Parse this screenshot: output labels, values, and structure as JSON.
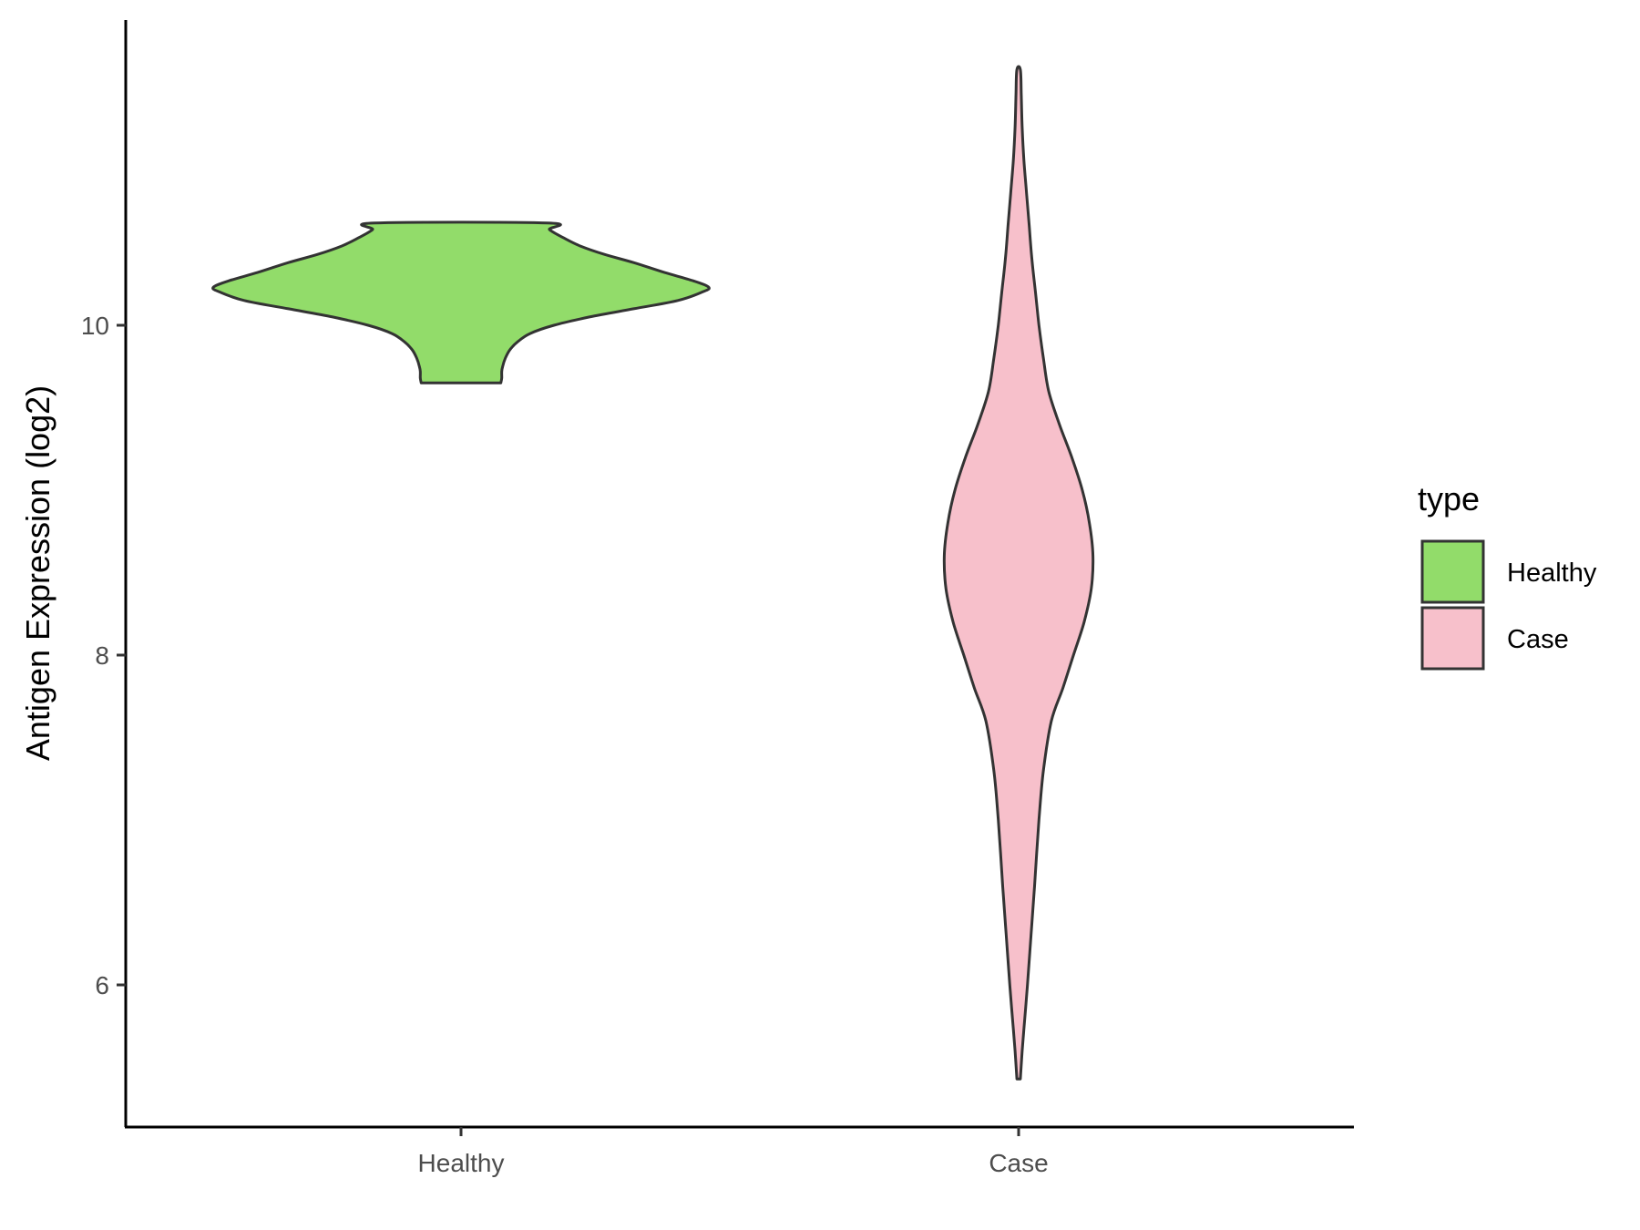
{
  "chart_data": {
    "type": "violin",
    "ylabel": "Antigen Expression (log2)",
    "xlabel": "",
    "categories": [
      "Healthy",
      "Case"
    ],
    "y_ticks": [
      6,
      8,
      10
    ],
    "ylim": [
      5.2,
      11.9
    ],
    "grid": false,
    "legend": {
      "title": "type",
      "position": "right",
      "entries": [
        {
          "label": "Healthy",
          "color": "#92dc6a"
        },
        {
          "label": "Case",
          "color": "#f7c0cb"
        }
      ]
    },
    "series": [
      {
        "category": "Healthy",
        "color": "#92dc6a",
        "min": 9.65,
        "max": 10.62,
        "density_profile": [
          [
            9.65,
            0.45
          ],
          [
            9.68,
            0.46
          ],
          [
            9.72,
            0.46
          ],
          [
            9.75,
            0.47
          ],
          [
            9.8,
            0.5
          ],
          [
            9.85,
            0.55
          ],
          [
            9.9,
            0.64
          ],
          [
            9.95,
            0.78
          ],
          [
            10.0,
            1.05
          ],
          [
            10.05,
            1.45
          ],
          [
            10.1,
            1.95
          ],
          [
            10.15,
            2.45
          ],
          [
            10.2,
            2.72
          ],
          [
            10.23,
            2.8
          ],
          [
            10.27,
            2.62
          ],
          [
            10.32,
            2.3
          ],
          [
            10.38,
            1.95
          ],
          [
            10.43,
            1.62
          ],
          [
            10.48,
            1.35
          ],
          [
            10.53,
            1.16
          ],
          [
            10.58,
            1.0
          ],
          [
            10.62,
            0.98
          ]
        ]
      },
      {
        "category": "Case",
        "color": "#f7c0cb",
        "min": 5.43,
        "max": 11.55,
        "density_profile": [
          [
            5.43,
            0.02
          ],
          [
            5.6,
            0.04
          ],
          [
            5.8,
            0.07
          ],
          [
            6.0,
            0.1
          ],
          [
            6.3,
            0.14
          ],
          [
            6.6,
            0.18
          ],
          [
            7.0,
            0.23
          ],
          [
            7.3,
            0.28
          ],
          [
            7.6,
            0.37
          ],
          [
            7.8,
            0.5
          ],
          [
            8.0,
            0.62
          ],
          [
            8.2,
            0.74
          ],
          [
            8.4,
            0.82
          ],
          [
            8.6,
            0.84
          ],
          [
            8.8,
            0.8
          ],
          [
            9.0,
            0.72
          ],
          [
            9.2,
            0.6
          ],
          [
            9.4,
            0.46
          ],
          [
            9.6,
            0.34
          ],
          [
            9.8,
            0.28
          ],
          [
            10.0,
            0.23
          ],
          [
            10.2,
            0.19
          ],
          [
            10.4,
            0.15
          ],
          [
            10.6,
            0.12
          ],
          [
            10.8,
            0.09
          ],
          [
            11.0,
            0.06
          ],
          [
            11.2,
            0.04
          ],
          [
            11.4,
            0.03
          ],
          [
            11.55,
            0.02
          ]
        ]
      }
    ]
  }
}
